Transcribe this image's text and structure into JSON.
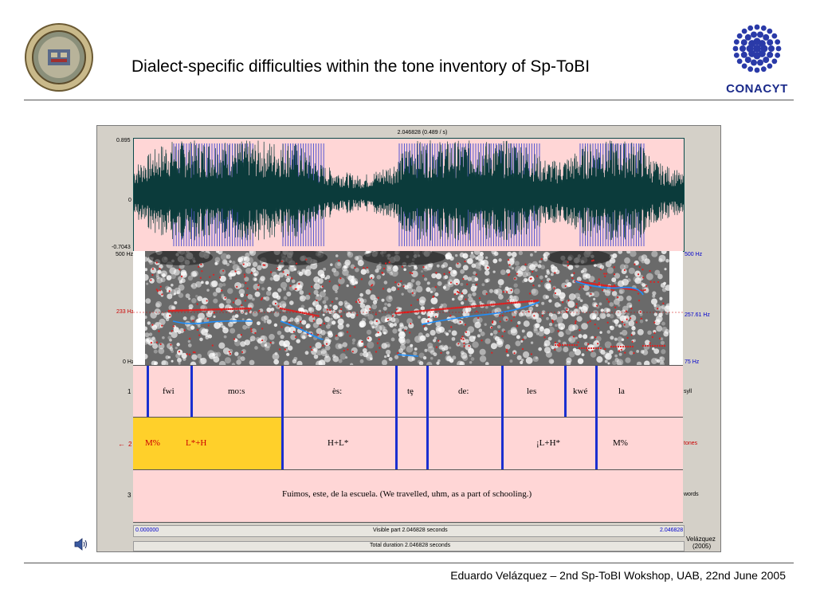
{
  "title": "Dialect-specific difficulties within the tone inventory of Sp-ToBI",
  "footer": "Eduardo Velázquez – 2nd Sp-ToBI Wokshop, UAB, 22nd June 2005",
  "logos": {
    "left": "university-seal-logo",
    "right": "CONACYT"
  },
  "praat": {
    "cursor_readout": "2.046828 (0.489 / s)",
    "wave": {
      "max": "0.895",
      "zero": "0",
      "min": "-0.7043"
    },
    "spectrogram": {
      "top_left": "500 Hz",
      "mid_left": "233 Hz",
      "bottom_left": "0 Hz",
      "top_right": "500 Hz",
      "mid_right": "257.61 Hz",
      "bottom_right": "75 Hz"
    },
    "tiers": [
      {
        "number": "1",
        "name": "syll",
        "labels": [
          "fwi",
          "mo:s",
          "ès:",
          "tȩ",
          "de:",
          "les",
          "kwé",
          "la"
        ]
      },
      {
        "number": "2",
        "name": "tones",
        "arrow": "←",
        "labels": [
          "M%",
          "L*+H",
          "H+L*",
          "¡L+H*",
          "M%"
        ]
      },
      {
        "number": "3",
        "name": "words",
        "labels": [
          "Fuimos, este, de la escuela. (We travelled, uhm, as a part of schooling.)"
        ]
      }
    ],
    "time_start": "0.000000",
    "time_end": "2.046828",
    "visible_part": "Visible part 2.046828 seconds",
    "total_duration": "Total duration 2.046828 seconds",
    "credit_name": "Velázquez",
    "credit_year": "(2005)",
    "colors": {
      "tier_bg": "#ffd6d6",
      "selection": "#ffd02a",
      "boundary": "#1a2fd0",
      "waveform": "#0b3b3b",
      "pulses": "#2030d0",
      "pitch": "#1e90ff",
      "formant": "#e02020"
    }
  }
}
